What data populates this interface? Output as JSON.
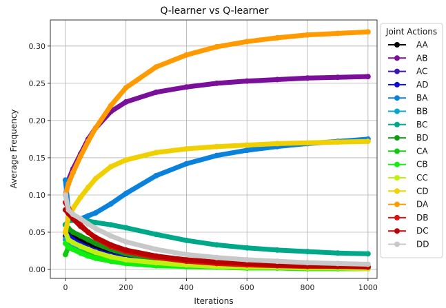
{
  "chart_data": {
    "type": "line",
    "title": "Q-learner vs Q-learner",
    "xlabel": "Iterations",
    "ylabel": "Average Frequency",
    "xlim": [
      -50,
      1030
    ],
    "ylim": [
      -0.012,
      0.335
    ],
    "x_ticks": [
      0,
      200,
      400,
      600,
      800,
      1000
    ],
    "x_tick_labels": [
      "0",
      "200",
      "400",
      "600",
      "800",
      "1000"
    ],
    "y_ticks": [
      0.0,
      0.05,
      0.1,
      0.15,
      0.2,
      0.25,
      0.3
    ],
    "y_tick_labels": [
      "0.00",
      "0.05",
      "0.10",
      "0.15",
      "0.20",
      "0.25",
      "0.30"
    ],
    "grid": true,
    "legend": {
      "title": "Joint Actions",
      "placement": "outside-right"
    },
    "x": [
      0,
      10,
      25,
      50,
      75,
      100,
      150,
      200,
      300,
      400,
      500,
      600,
      700,
      800,
      900,
      1000
    ],
    "series": [
      {
        "name": "AA",
        "color": "#000000",
        "values": [
          0.06,
          0.055,
          0.048,
          0.04,
          0.033,
          0.028,
          0.02,
          0.015,
          0.01,
          0.007,
          0.005,
          0.004,
          0.003,
          0.003,
          0.002,
          0.002
        ]
      },
      {
        "name": "AB",
        "color": "#7a0f9a",
        "values": [
          0.1,
          0.12,
          0.135,
          0.155,
          0.175,
          0.19,
          0.212,
          0.225,
          0.238,
          0.245,
          0.25,
          0.253,
          0.255,
          0.257,
          0.258,
          0.259
        ]
      },
      {
        "name": "AC",
        "color": "#3a16b0",
        "values": [
          0.045,
          0.042,
          0.038,
          0.033,
          0.028,
          0.024,
          0.018,
          0.014,
          0.009,
          0.006,
          0.005,
          0.004,
          0.003,
          0.003,
          0.002,
          0.002
        ]
      },
      {
        "name": "AD",
        "color": "#0a10d8",
        "values": [
          0.05,
          0.045,
          0.04,
          0.034,
          0.029,
          0.025,
          0.019,
          0.015,
          0.01,
          0.007,
          0.005,
          0.004,
          0.003,
          0.003,
          0.002,
          0.002
        ]
      },
      {
        "name": "BA",
        "color": "#0a82dc",
        "values": [
          0.12,
          0.08,
          0.07,
          0.068,
          0.072,
          0.076,
          0.088,
          0.102,
          0.126,
          0.142,
          0.153,
          0.16,
          0.165,
          0.169,
          0.172,
          0.175
        ]
      },
      {
        "name": "BB",
        "color": "#0aa6c8",
        "values": [
          0.04,
          0.036,
          0.032,
          0.028,
          0.024,
          0.021,
          0.016,
          0.012,
          0.008,
          0.006,
          0.005,
          0.004,
          0.003,
          0.003,
          0.002,
          0.002
        ]
      },
      {
        "name": "BC",
        "color": "#00a88a",
        "values": [
          0.06,
          0.065,
          0.066,
          0.066,
          0.065,
          0.063,
          0.06,
          0.056,
          0.047,
          0.039,
          0.033,
          0.029,
          0.026,
          0.024,
          0.022,
          0.021
        ]
      },
      {
        "name": "BD",
        "color": "#0f9a0f",
        "values": [
          0.05,
          0.055,
          0.05,
          0.045,
          0.04,
          0.035,
          0.027,
          0.021,
          0.014,
          0.01,
          0.007,
          0.005,
          0.004,
          0.003,
          0.003,
          0.002
        ]
      },
      {
        "name": "CA",
        "color": "#10cc10",
        "values": [
          0.02,
          0.03,
          0.027,
          0.023,
          0.02,
          0.017,
          0.012,
          0.009,
          0.006,
          0.004,
          0.003,
          0.002,
          0.002,
          0.001,
          0.001,
          0.001
        ]
      },
      {
        "name": "CB",
        "color": "#10f010",
        "values": [
          0.035,
          0.03,
          0.027,
          0.022,
          0.018,
          0.015,
          0.011,
          0.008,
          0.005,
          0.004,
          0.003,
          0.002,
          0.002,
          0.001,
          0.001,
          0.001
        ]
      },
      {
        "name": "CC",
        "color": "#c0f010",
        "values": [
          0.05,
          0.04,
          0.036,
          0.031,
          0.027,
          0.023,
          0.017,
          0.013,
          0.009,
          0.006,
          0.004,
          0.003,
          0.003,
          0.002,
          0.002,
          0.001
        ]
      },
      {
        "name": "CD",
        "color": "#f0d000",
        "values": [
          0.05,
          0.07,
          0.082,
          0.097,
          0.11,
          0.122,
          0.138,
          0.147,
          0.157,
          0.162,
          0.165,
          0.167,
          0.169,
          0.17,
          0.171,
          0.172
        ]
      },
      {
        "name": "DA",
        "color": "#ff9a00",
        "values": [
          0.1,
          0.115,
          0.13,
          0.152,
          0.172,
          0.19,
          0.22,
          0.244,
          0.272,
          0.288,
          0.299,
          0.306,
          0.311,
          0.315,
          0.317,
          0.319
        ]
      },
      {
        "name": "DB",
        "color": "#dd1010",
        "values": [
          0.09,
          0.082,
          0.072,
          0.06,
          0.05,
          0.042,
          0.031,
          0.024,
          0.016,
          0.011,
          0.008,
          0.006,
          0.005,
          0.004,
          0.004,
          0.003
        ]
      },
      {
        "name": "DC",
        "color": "#b80000",
        "values": [
          0.08,
          0.075,
          0.068,
          0.058,
          0.05,
          0.043,
          0.033,
          0.026,
          0.018,
          0.013,
          0.01,
          0.008,
          0.006,
          0.005,
          0.004,
          0.004
        ]
      },
      {
        "name": "DD",
        "color": "#c8c8c8",
        "values": [
          0.1,
          0.08,
          0.074,
          0.068,
          0.061,
          0.055,
          0.045,
          0.037,
          0.027,
          0.02,
          0.016,
          0.013,
          0.011,
          0.009,
          0.008,
          0.007
        ]
      }
    ]
  }
}
